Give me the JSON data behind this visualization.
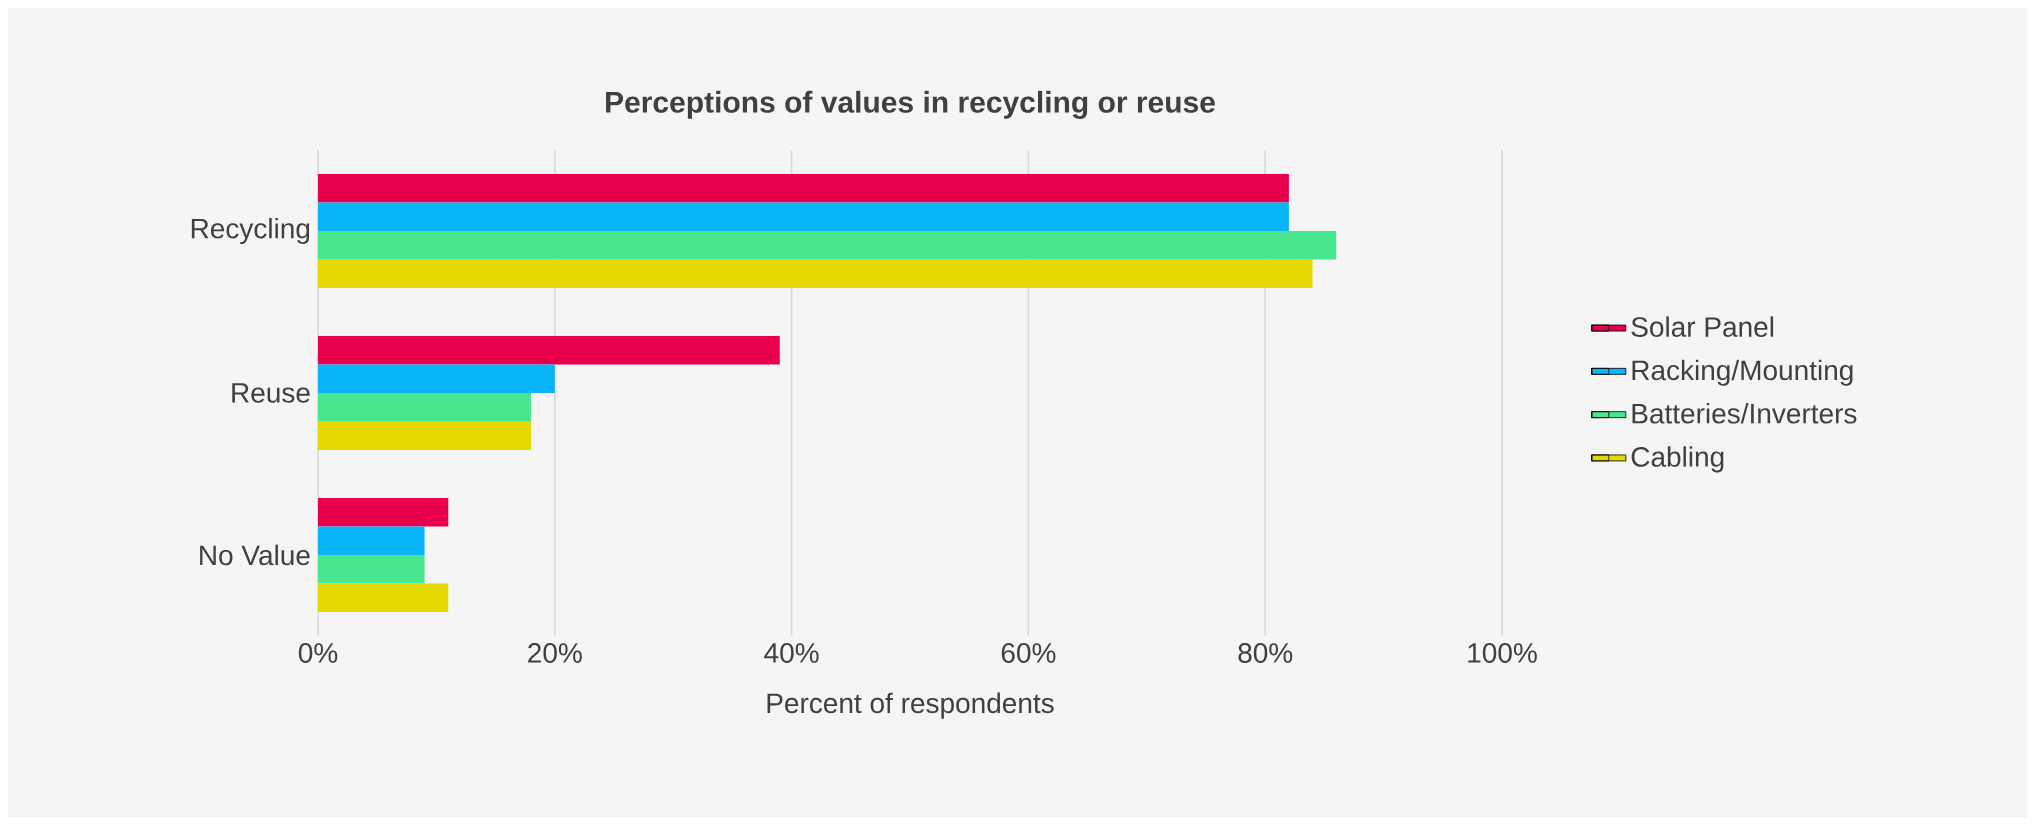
{
  "chart_data": {
    "type": "bar",
    "orientation": "horizontal",
    "title": "Perceptions of values in recycling or reuse",
    "xlabel": "Percent of respondents",
    "categories": [
      "Recycling",
      "Reuse",
      "No Value"
    ],
    "series": [
      {
        "name": "Solar Panel",
        "color": "#e8004c",
        "values": [
          82,
          39,
          11
        ]
      },
      {
        "name": "Racking/Mounting",
        "color": "#0ab4f8",
        "values": [
          82,
          20,
          9
        ]
      },
      {
        "name": "Batteries/Inverters",
        "color": "#48e68e",
        "values": [
          86,
          18,
          9
        ]
      },
      {
        "name": "Cabling",
        "color": "#e4d800",
        "values": [
          84,
          18,
          11
        ]
      }
    ],
    "xlim": [
      0,
      100
    ],
    "xticks": [
      {
        "value": 0,
        "label": "0%"
      },
      {
        "value": 20,
        "label": "20%"
      },
      {
        "value": 40,
        "label": "40%"
      },
      {
        "value": 60,
        "label": "60%"
      },
      {
        "value": 80,
        "label": "80%"
      },
      {
        "value": 100,
        "label": "100%"
      }
    ],
    "grid": "x",
    "legend": "right"
  }
}
